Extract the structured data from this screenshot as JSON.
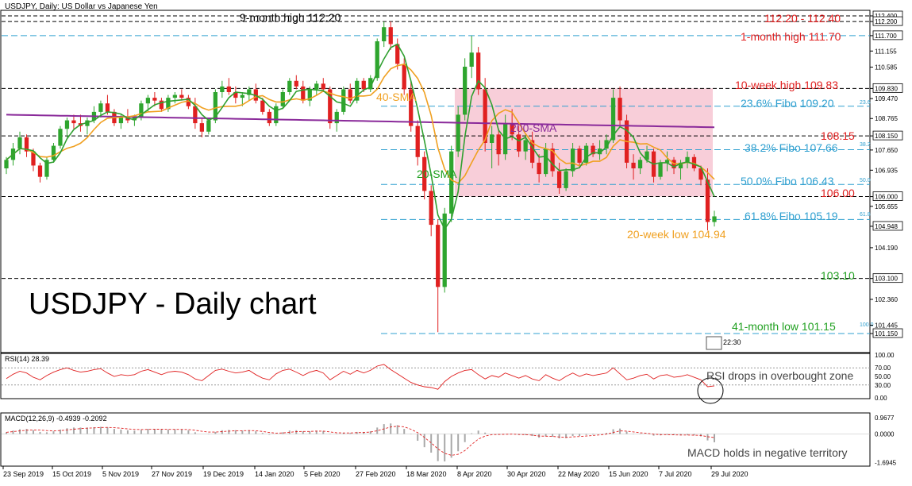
{
  "header": {
    "instrument": "USDJPY, Daily:  US Dollar vs Japanese Yen",
    "rsi_label": "RSI(14) 28.39",
    "macd_label": "MACD(12,26,9) -0.4939 -0.2092",
    "big_title": "USDJPY - Daily chart"
  },
  "colors": {
    "bull": "#2ea52e",
    "bear": "#e02020",
    "sma20": "#30a030",
    "sma40": "#f0a020",
    "sma200": "#8a2a9a",
    "fibo": "#30a0d0",
    "resistance": "#e02020",
    "support": "#20a020",
    "low": "#f0a020",
    "box": "#f6c2d0"
  },
  "chart_data": [
    {
      "type": "candlestick",
      "title": "USDJPY, Daily:  US Dollar vs Japanese Yen",
      "ylim": [
        100.73,
        112.65
      ],
      "y_ticks": [
        "112.400",
        "112.200",
        "111.700",
        "111.155",
        "110.585",
        "109.830",
        "109.470",
        "108.765",
        "108.150",
        "107.650",
        "106.935",
        "106.000",
        "105.655",
        "104.948",
        "104.190",
        "103.100",
        "102.360",
        "101.445",
        "101.150"
      ],
      "x_ticks": [
        "23 Sep 2019",
        "15 Oct 2019",
        "5 Nov 2019",
        "27 Nov 2019",
        "19 Dec 2019",
        "14 Jan 2020",
        "5 Feb 2020",
        "27 Feb 2020",
        "18 Mar 2020",
        "8 Apr 2020",
        "30 Apr 2020",
        "22 May 2020",
        "15 Jun 2020",
        "7 Jul 2020",
        "29 Jul 2020"
      ],
      "candles": [
        [
          107.0,
          107.4,
          106.8,
          107.3
        ],
        [
          107.3,
          107.9,
          107.1,
          107.7
        ],
        [
          107.7,
          108.3,
          107.5,
          108.1
        ],
        [
          108.1,
          108.2,
          107.4,
          107.6
        ],
        [
          107.6,
          107.7,
          106.9,
          107.1
        ],
        [
          107.1,
          107.2,
          106.5,
          106.7
        ],
        [
          106.7,
          107.4,
          106.6,
          107.3
        ],
        [
          107.3,
          107.9,
          107.2,
          107.8
        ],
        [
          107.8,
          108.5,
          107.7,
          108.4
        ],
        [
          108.4,
          108.8,
          108.1,
          108.7
        ],
        [
          108.7,
          108.9,
          108.4,
          108.6
        ],
        [
          108.6,
          108.9,
          108.3,
          108.5
        ],
        [
          108.5,
          108.8,
          108.2,
          108.7
        ],
        [
          108.7,
          109.2,
          108.6,
          109.0
        ],
        [
          109.0,
          109.4,
          108.8,
          109.3
        ],
        [
          109.3,
          109.6,
          108.9,
          109.0
        ],
        [
          109.0,
          109.1,
          108.5,
          108.6
        ],
        [
          108.6,
          108.9,
          108.4,
          108.8
        ],
        [
          108.8,
          109.1,
          108.6,
          108.7
        ],
        [
          108.7,
          108.9,
          108.5,
          108.8
        ],
        [
          108.8,
          109.4,
          108.7,
          109.3
        ],
        [
          109.3,
          109.6,
          109.0,
          109.5
        ],
        [
          109.5,
          109.7,
          109.2,
          109.4
        ],
        [
          109.4,
          109.5,
          109.0,
          109.1
        ],
        [
          109.1,
          109.6,
          109.0,
          109.5
        ],
        [
          109.5,
          109.7,
          109.3,
          109.6
        ],
        [
          109.6,
          109.8,
          109.4,
          109.5
        ],
        [
          109.5,
          109.6,
          109.1,
          109.2
        ],
        [
          109.2,
          109.5,
          108.4,
          108.6
        ],
        [
          108.6,
          108.8,
          108.1,
          108.3
        ],
        [
          108.3,
          108.8,
          108.2,
          108.7
        ],
        [
          108.7,
          109.8,
          108.6,
          109.7
        ],
        [
          109.7,
          110.1,
          109.5,
          109.9
        ],
        [
          109.9,
          110.2,
          109.6,
          109.7
        ],
        [
          109.7,
          109.9,
          109.3,
          109.5
        ],
        [
          109.5,
          109.7,
          109.2,
          109.6
        ],
        [
          109.6,
          109.9,
          109.4,
          109.8
        ],
        [
          109.8,
          110.0,
          109.3,
          109.4
        ],
        [
          109.4,
          109.5,
          108.9,
          109.0
        ],
        [
          109.0,
          109.1,
          108.5,
          108.6
        ],
        [
          108.6,
          109.3,
          108.5,
          109.2
        ],
        [
          109.2,
          109.8,
          109.1,
          109.7
        ],
        [
          109.7,
          110.2,
          109.6,
          110.1
        ],
        [
          110.1,
          110.3,
          109.8,
          109.9
        ],
        [
          109.9,
          110.1,
          109.3,
          109.4
        ],
        [
          109.4,
          109.9,
          109.2,
          109.8
        ],
        [
          109.8,
          110.1,
          109.6,
          110.0
        ],
        [
          110.0,
          110.2,
          109.7,
          109.8
        ],
        [
          109.8,
          109.9,
          108.4,
          108.6
        ],
        [
          108.6,
          109.1,
          108.3,
          109.0
        ],
        [
          109.0,
          109.9,
          108.9,
          109.8
        ],
        [
          109.8,
          110.0,
          109.3,
          109.4
        ],
        [
          109.4,
          110.2,
          109.3,
          110.1
        ],
        [
          110.1,
          110.2,
          109.7,
          109.8
        ],
        [
          109.8,
          110.3,
          109.7,
          110.2
        ],
        [
          110.2,
          111.6,
          110.1,
          111.5
        ],
        [
          111.5,
          112.2,
          111.3,
          112.0
        ],
        [
          112.0,
          112.2,
          111.2,
          111.4
        ],
        [
          111.4,
          111.6,
          110.5,
          110.7
        ],
        [
          110.7,
          110.9,
          109.6,
          109.8
        ],
        [
          109.8,
          110.1,
          108.3,
          108.5
        ],
        [
          108.5,
          108.7,
          107.1,
          107.4
        ],
        [
          107.4,
          107.6,
          105.9,
          106.2
        ],
        [
          106.2,
          106.4,
          104.6,
          105.0
        ],
        [
          105.0,
          105.2,
          101.2,
          102.8
        ],
        [
          102.8,
          105.6,
          102.6,
          105.4
        ],
        [
          105.4,
          107.8,
          105.1,
          107.6
        ],
        [
          107.6,
          109.2,
          107.4,
          108.9
        ],
        [
          108.9,
          110.9,
          108.7,
          110.6
        ],
        [
          110.6,
          111.7,
          110.2,
          111.1
        ],
        [
          111.1,
          111.3,
          109.6,
          109.8
        ],
        [
          109.8,
          110.2,
          107.6,
          107.9
        ],
        [
          107.9,
          108.5,
          107.0,
          108.2
        ],
        [
          108.2,
          108.4,
          107.1,
          107.5
        ],
        [
          107.5,
          108.9,
          107.3,
          108.6
        ],
        [
          108.6,
          109.1,
          108.0,
          108.2
        ],
        [
          108.2,
          108.5,
          107.4,
          107.6
        ],
        [
          107.6,
          108.2,
          107.3,
          108.0
        ],
        [
          108.0,
          108.3,
          107.0,
          107.2
        ],
        [
          107.2,
          107.5,
          106.5,
          106.8
        ],
        [
          106.8,
          107.9,
          106.7,
          107.7
        ],
        [
          107.7,
          107.9,
          106.7,
          106.9
        ],
        [
          106.9,
          107.2,
          106.1,
          106.3
        ],
        [
          106.3,
          107.0,
          106.2,
          106.9
        ],
        [
          106.9,
          107.9,
          106.7,
          107.7
        ],
        [
          107.7,
          107.8,
          107.0,
          107.2
        ],
        [
          107.2,
          107.9,
          107.1,
          107.8
        ],
        [
          107.8,
          107.9,
          107.4,
          107.5
        ],
        [
          107.5,
          108.0,
          107.3,
          107.7
        ],
        [
          107.7,
          108.2,
          107.5,
          108.0
        ],
        [
          108.0,
          109.8,
          107.9,
          109.5
        ],
        [
          109.5,
          109.9,
          108.5,
          108.7
        ],
        [
          108.7,
          108.9,
          107.0,
          107.2
        ],
        [
          107.2,
          107.5,
          106.6,
          107.0
        ],
        [
          107.0,
          107.4,
          106.8,
          107.3
        ],
        [
          107.3,
          107.8,
          107.2,
          107.6
        ],
        [
          107.6,
          107.7,
          106.5,
          106.7
        ],
        [
          106.7,
          107.3,
          106.6,
          107.2
        ],
        [
          107.2,
          107.6,
          106.9,
          107.3
        ],
        [
          107.3,
          107.4,
          106.8,
          107.0
        ],
        [
          107.0,
          107.3,
          106.6,
          107.2
        ],
        [
          107.2,
          107.6,
          107.0,
          107.4
        ],
        [
          107.4,
          107.5,
          106.9,
          107.0
        ],
        [
          107.0,
          107.1,
          106.4,
          106.6
        ],
        [
          106.6,
          107.0,
          104.8,
          105.1
        ],
        [
          105.1,
          105.5,
          104.94,
          105.3
        ]
      ],
      "annotations": {
        "nine_month_high": "9-month high 112.20",
        "res_112": "112.20 - 112.40",
        "one_month_high": "1-month high 111.70",
        "ten_week_high": "10-week high 109.83",
        "fibo_236": "23.6% Fibo 109.20",
        "res_10815": "108.15",
        "fibo_382": "38.2% Fibo 107.66",
        "fibo_500": "50.0% Fibo 106.43",
        "res_10600": "106.00",
        "fibo_618": "61.8% Fibo 105.19",
        "twenty_week_low": "20-week low 104.94",
        "sup_10310": "103.10",
        "forty_one_month_low": "41-month low 101.15",
        "sma40": "40-SMA",
        "sma200": "200-SMA",
        "sma20": "20-SMA",
        "fibo_tiny": [
          "23.6",
          "38.2",
          "50.0",
          "61.8",
          "100.0"
        ],
        "time_badge": "22:30"
      }
    },
    {
      "type": "line",
      "title": "RSI(14) 28.39",
      "y_ticks": [
        "100.00",
        "70.00",
        "50.00",
        "30.00",
        "0.00"
      ],
      "ylim": [
        0,
        100
      ],
      "annotation": "RSI drops in overbought zone",
      "values": [
        45,
        55,
        62,
        58,
        48,
        42,
        52,
        60,
        66,
        70,
        64,
        60,
        62,
        66,
        68,
        58,
        50,
        54,
        52,
        54,
        62,
        66,
        60,
        54,
        60,
        62,
        60,
        54,
        44,
        40,
        52,
        64,
        67,
        62,
        58,
        60,
        64,
        54,
        46,
        42,
        56,
        64,
        67,
        60,
        52,
        60,
        64,
        58,
        42,
        52,
        62,
        55,
        64,
        58,
        64,
        74,
        78,
        66,
        56,
        46,
        36,
        30,
        26,
        24,
        20,
        38,
        50,
        58,
        64,
        66,
        54,
        44,
        52,
        48,
        58,
        52,
        46,
        52,
        44,
        40,
        54,
        46,
        40,
        50,
        58,
        50,
        56,
        52,
        55,
        58,
        70,
        56,
        42,
        46,
        52,
        55,
        44,
        52,
        54,
        48,
        50,
        54,
        48,
        42,
        26,
        28
      ]
    },
    {
      "type": "bar",
      "title": "MACD(12,26,9) -0.4939 -0.2092",
      "y_ticks": [
        "0.9677",
        "0.0000",
        "-1.6945"
      ],
      "ylim": [
        -1.85,
        1.1
      ],
      "annotation": "MACD holds in negative territory",
      "histogram": [
        0.1,
        0.2,
        0.28,
        0.3,
        0.22,
        0.12,
        0.1,
        0.16,
        0.26,
        0.34,
        0.38,
        0.38,
        0.38,
        0.4,
        0.42,
        0.4,
        0.3,
        0.26,
        0.22,
        0.2,
        0.24,
        0.3,
        0.3,
        0.26,
        0.26,
        0.28,
        0.28,
        0.22,
        0.1,
        0.0,
        0.02,
        0.12,
        0.22,
        0.24,
        0.22,
        0.2,
        0.22,
        0.16,
        0.06,
        -0.04,
        0.0,
        0.1,
        0.2,
        0.22,
        0.16,
        0.16,
        0.2,
        0.18,
        0.02,
        -0.02,
        0.06,
        0.06,
        0.12,
        0.12,
        0.16,
        0.38,
        0.58,
        0.62,
        0.52,
        0.3,
        -0.02,
        -0.4,
        -0.78,
        -1.1,
        -1.6,
        -1.62,
        -1.4,
        -1.02,
        -0.48,
        0.04,
        0.2,
        0.08,
        0.0,
        -0.05,
        0.0,
        0.0,
        -0.06,
        -0.06,
        -0.12,
        -0.22,
        -0.14,
        -0.16,
        -0.26,
        -0.24,
        -0.12,
        -0.12,
        -0.06,
        -0.04,
        0.0,
        0.06,
        0.28,
        0.32,
        0.14,
        0.02,
        -0.02,
        0.0,
        -0.1,
        -0.08,
        -0.04,
        -0.06,
        -0.08,
        -0.06,
        -0.08,
        -0.14,
        -0.38,
        -0.49
      ],
      "signal": [
        0.1,
        0.14,
        0.18,
        0.22,
        0.24,
        0.23,
        0.2,
        0.18,
        0.2,
        0.24,
        0.28,
        0.32,
        0.34,
        0.36,
        0.38,
        0.39,
        0.37,
        0.34,
        0.3,
        0.27,
        0.26,
        0.27,
        0.28,
        0.28,
        0.27,
        0.27,
        0.27,
        0.26,
        0.22,
        0.16,
        0.11,
        0.11,
        0.14,
        0.17,
        0.19,
        0.19,
        0.2,
        0.19,
        0.15,
        0.09,
        0.05,
        0.06,
        0.1,
        0.14,
        0.15,
        0.15,
        0.17,
        0.17,
        0.12,
        0.07,
        0.06,
        0.06,
        0.08,
        0.09,
        0.11,
        0.19,
        0.3,
        0.41,
        0.46,
        0.42,
        0.28,
        0.08,
        -0.2,
        -0.52,
        -0.88,
        -1.14,
        -1.26,
        -1.2,
        -0.98,
        -0.62,
        -0.3,
        -0.12,
        -0.04,
        -0.03,
        -0.02,
        -0.01,
        -0.03,
        -0.04,
        -0.07,
        -0.12,
        -0.13,
        -0.14,
        -0.18,
        -0.2,
        -0.17,
        -0.15,
        -0.12,
        -0.09,
        -0.05,
        -0.01,
        0.09,
        0.18,
        0.17,
        0.12,
        0.07,
        0.04,
        -0.01,
        -0.04,
        -0.04,
        -0.05,
        -0.06,
        -0.06,
        -0.07,
        -0.09,
        -0.16,
        -0.21
      ]
    }
  ]
}
